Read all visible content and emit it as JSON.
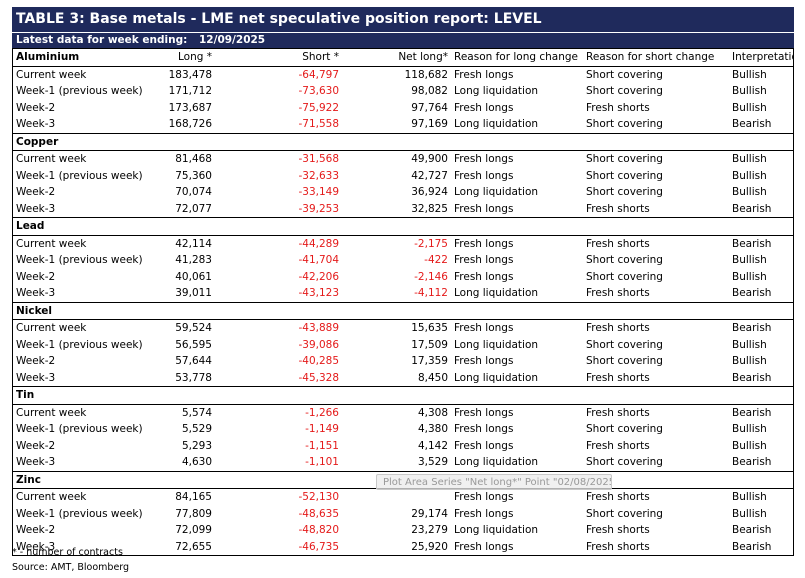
{
  "title": "TABLE 3: Base metals - LME net speculative position report: LEVEL",
  "subtitle": {
    "label": "Latest data for week ending:",
    "date": "12/09/2025"
  },
  "headers": {
    "long": "Long *",
    "short": "Short *",
    "net": "Net long*",
    "reason_long": "Reason for long change",
    "reason_short": "Reason for short change",
    "interp": "Interpretation"
  },
  "sections": [
    {
      "name": "Aluminium",
      "rows": [
        [
          "Current week",
          "183,478",
          "-64,797",
          "118,682",
          "Fresh longs",
          "Short covering",
          "Bullish"
        ],
        [
          "Week-1 (previous week)",
          "171,712",
          "-73,630",
          "98,082",
          "Long liquidation",
          "Short covering",
          "Bullish"
        ],
        [
          "Week-2",
          "173,687",
          "-75,922",
          "97,764",
          "Fresh longs",
          "Fresh shorts",
          "Bullish"
        ],
        [
          "Week-3",
          "168,726",
          "-71,558",
          "97,169",
          "Long liquidation",
          "Short covering",
          "Bearish"
        ]
      ]
    },
    {
      "name": "Copper",
      "rows": [
        [
          "Current week",
          "81,468",
          "-31,568",
          "49,900",
          "Fresh longs",
          "Short covering",
          "Bullish"
        ],
        [
          "Week-1 (previous week)",
          "75,360",
          "-32,633",
          "42,727",
          "Fresh longs",
          "Short covering",
          "Bullish"
        ],
        [
          "Week-2",
          "70,074",
          "-33,149",
          "36,924",
          "Long liquidation",
          "Short covering",
          "Bullish"
        ],
        [
          "Week-3",
          "72,077",
          "-39,253",
          "32,825",
          "Fresh longs",
          "Fresh shorts",
          "Bearish"
        ]
      ]
    },
    {
      "name": "Lead",
      "rows": [
        [
          "Current week",
          "42,114",
          "-44,289",
          "-2,175",
          "Fresh longs",
          "Fresh shorts",
          "Bearish"
        ],
        [
          "Week-1 (previous week)",
          "41,283",
          "-41,704",
          "-422",
          "Fresh longs",
          "Short covering",
          "Bullish"
        ],
        [
          "Week-2",
          "40,061",
          "-42,206",
          "-2,146",
          "Fresh longs",
          "Short covering",
          "Bullish"
        ],
        [
          "Week-3",
          "39,011",
          "-43,123",
          "-4,112",
          "Long liquidation",
          "Fresh shorts",
          "Bearish"
        ]
      ]
    },
    {
      "name": "Nickel",
      "rows": [
        [
          "Current week",
          "59,524",
          "-43,889",
          "15,635",
          "Fresh longs",
          "Fresh shorts",
          "Bearish"
        ],
        [
          "Week-1 (previous week)",
          "56,595",
          "-39,086",
          "17,509",
          "Long liquidation",
          "Short covering",
          "Bullish"
        ],
        [
          "Week-2",
          "57,644",
          "-40,285",
          "17,359",
          "Fresh longs",
          "Short covering",
          "Bullish"
        ],
        [
          "Week-3",
          "53,778",
          "-45,328",
          "8,450",
          "Long liquidation",
          "Fresh shorts",
          "Bearish"
        ]
      ]
    },
    {
      "name": "Tin",
      "rows": [
        [
          "Current week",
          "5,574",
          "-1,266",
          "4,308",
          "Fresh longs",
          "Fresh shorts",
          "Bearish"
        ],
        [
          "Week-1 (previous week)",
          "5,529",
          "-1,149",
          "4,380",
          "Fresh longs",
          "Short covering",
          "Bullish"
        ],
        [
          "Week-2",
          "5,293",
          "-1,151",
          "4,142",
          "Fresh longs",
          "Fresh shorts",
          "Bullish"
        ],
        [
          "Week-3",
          "4,630",
          "-1,101",
          "3,529",
          "Long liquidation",
          "Short covering",
          "Bearish"
        ]
      ]
    },
    {
      "name": "Zinc",
      "rows": [
        [
          "Current week",
          "84,165",
          "-52,130",
          "",
          "Fresh longs",
          "Fresh shorts",
          "Bullish"
        ],
        [
          "Week-1 (previous week)",
          "77,809",
          "-48,635",
          "29,174",
          "Fresh longs",
          "Short covering",
          "Bullish"
        ],
        [
          "Week-2",
          "72,099",
          "-48,820",
          "23,279",
          "Long liquidation",
          "Fresh shorts",
          "Bearish"
        ],
        [
          "Week-3",
          "72,655",
          "-46,735",
          "25,920",
          "Fresh longs",
          "Fresh shorts",
          "Bearish"
        ]
      ]
    }
  ],
  "tooltip": "Plot Area  Series \"Net long*\" Point \"02/08/2025\"",
  "notes": {
    "footnote": "* - number of contracts",
    "source": "Source: AMT, Bloomberg"
  },
  "colors": {
    "header_bg": "#1f2a5c",
    "negative": "#e41a1a"
  }
}
